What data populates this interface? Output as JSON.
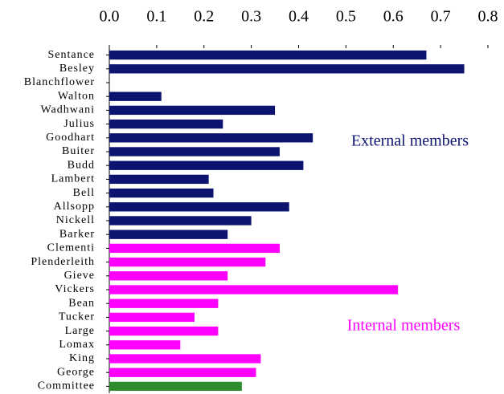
{
  "chart_data": {
    "type": "bar",
    "orientation": "horizontal",
    "categories": [
      "Sentance",
      "Besley",
      "Blanchflower",
      "Walton",
      "Wadhwani",
      "Julius",
      "Goodhart",
      "Buiter",
      "Budd",
      "Lambert",
      "Bell",
      "Allsopp",
      "Nickell",
      "Barker",
      "Clementi",
      "Plenderleith",
      "Gieve",
      "Vickers",
      "Bean",
      "Tucker",
      "Large",
      "Lomax",
      "King",
      "George",
      "Committee"
    ],
    "values": [
      0.67,
      0.75,
      0,
      0.11,
      0.35,
      0.24,
      0.43,
      0.36,
      0.41,
      0.21,
      0.22,
      0.38,
      0.3,
      0.25,
      0.36,
      0.33,
      0.25,
      0.61,
      0.23,
      0.18,
      0.23,
      0.15,
      0.32,
      0.31,
      0.28
    ],
    "colors": [
      "#0c1470",
      "#0c1470",
      "#0c1470",
      "#0c1470",
      "#0c1470",
      "#0c1470",
      "#0c1470",
      "#0c1470",
      "#0c1470",
      "#0c1470",
      "#0c1470",
      "#0c1470",
      "#0c1470",
      "#0c1470",
      "#ff00ff",
      "#ff00ff",
      "#ff00ff",
      "#ff00ff",
      "#ff00ff",
      "#ff00ff",
      "#ff00ff",
      "#ff00ff",
      "#ff00ff",
      "#ff00ff",
      "#2e8b2e"
    ],
    "xlim": [
      0,
      0.8
    ],
    "xticks": [
      {
        "value": 0,
        "label": "0.0"
      },
      0.1,
      0.2,
      0.3,
      0.4,
      0.5,
      0.6,
      0.7,
      0.8
    ],
    "annotations": [
      {
        "text": "External members",
        "color": "#0c1470"
      },
      {
        "text": "Internal members",
        "color": "#ff00ff"
      }
    ]
  }
}
